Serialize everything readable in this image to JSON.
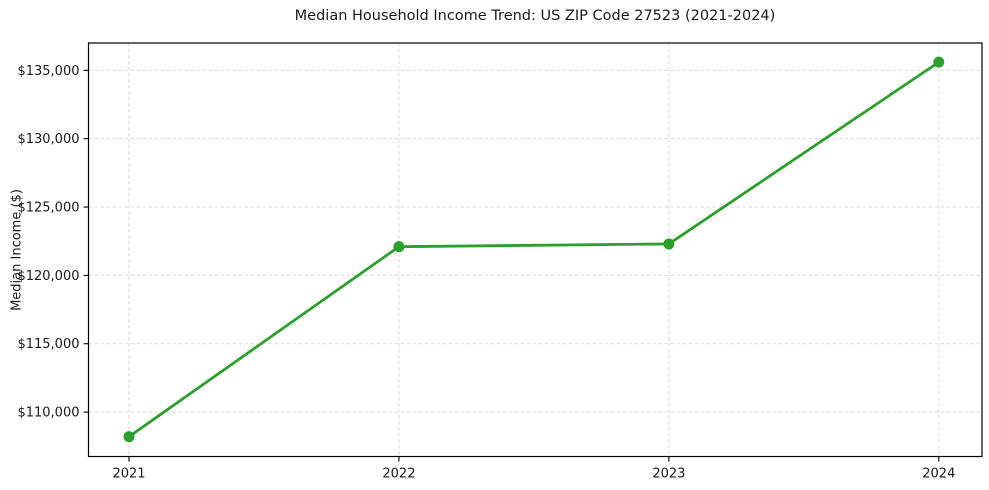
{
  "chart_data": {
    "type": "line",
    "title": "Median Household Income Trend: US ZIP Code 27523 (2021-2024)",
    "xlabel": "",
    "ylabel": "Median Income ($)",
    "x": [
      2021,
      2022,
      2023,
      2024
    ],
    "values": [
      108200,
      122100,
      122300,
      135600
    ],
    "xlim": [
      2020.85,
      2024.16
    ],
    "ylim": [
      106750,
      137000
    ],
    "xticks": [
      2021,
      2022,
      2023,
      2024
    ],
    "xtick_labels": [
      "2021",
      "2022",
      "2023",
      "2024"
    ],
    "yticks": [
      110000,
      115000,
      120000,
      125000,
      130000,
      135000
    ],
    "ytick_labels": [
      "$110,000",
      "$115,000",
      "$120,000",
      "$125,000",
      "$130,000",
      "$135,000"
    ],
    "grid": true,
    "grid_style": "dashed",
    "legend_position": "none",
    "marker": "circle",
    "line_color": "#2ca02c"
  },
  "colors": {
    "line": "#2ca02c",
    "marker": "#2ca02c",
    "grid": "#d9d9d9",
    "axis": "#000000",
    "text": "#1a1a1a",
    "background": "#ffffff"
  }
}
